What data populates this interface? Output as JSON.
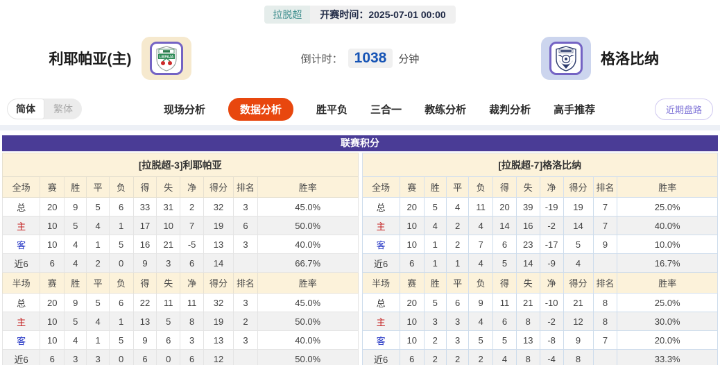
{
  "match": {
    "league_badge": "拉脱超",
    "kickoff_text": "开赛时间：2025-07-01 00:00",
    "home_team": "利耶帕亚(主)",
    "away_team": "格洛比纳",
    "home_logo": "liepaja-crest",
    "away_logo": "grobina-crest",
    "countdown_label": "倒计时：",
    "countdown_value": "1038",
    "countdown_unit": "分钟"
  },
  "nav": {
    "lang_simplified": "简体",
    "lang_traditional": "繁体",
    "tabs": [
      {
        "label": "现场分析",
        "active": false
      },
      {
        "label": "数据分析",
        "active": true
      },
      {
        "label": "胜平负",
        "active": false
      },
      {
        "label": "三合一",
        "active": false
      },
      {
        "label": "教练分析",
        "active": false
      },
      {
        "label": "裁判分析",
        "active": false
      },
      {
        "label": "高手推荐",
        "active": false
      }
    ],
    "recent_button": "近期盘路"
  },
  "league_table": {
    "title": "联赛积分",
    "columns_full": [
      "全场",
      "赛",
      "胜",
      "平",
      "负",
      "得",
      "失",
      "净",
      "得分",
      "排名",
      "胜率"
    ],
    "columns_half": [
      "半场",
      "赛",
      "胜",
      "平",
      "负",
      "得",
      "失",
      "净",
      "得分",
      "排名",
      "胜率"
    ],
    "teams": [
      {
        "header": "[拉脱超-3]利耶帕亚",
        "full": [
          [
            "总",
            "20",
            "9",
            "5",
            "6",
            "33",
            "31",
            "2",
            "32",
            "3",
            "45.0%"
          ],
          [
            "主",
            "10",
            "5",
            "4",
            "1",
            "17",
            "10",
            "7",
            "19",
            "6",
            "50.0%"
          ],
          [
            "客",
            "10",
            "4",
            "1",
            "5",
            "16",
            "21",
            "-5",
            "13",
            "3",
            "40.0%"
          ],
          [
            "近6",
            "6",
            "4",
            "2",
            "0",
            "9",
            "3",
            "6",
            "14",
            "",
            "66.7%"
          ]
        ],
        "half": [
          [
            "总",
            "20",
            "9",
            "5",
            "6",
            "22",
            "11",
            "11",
            "32",
            "3",
            "45.0%"
          ],
          [
            "主",
            "10",
            "5",
            "4",
            "1",
            "13",
            "5",
            "8",
            "19",
            "2",
            "50.0%"
          ],
          [
            "客",
            "10",
            "4",
            "1",
            "5",
            "9",
            "6",
            "3",
            "13",
            "3",
            "40.0%"
          ],
          [
            "近6",
            "6",
            "3",
            "3",
            "0",
            "6",
            "0",
            "6",
            "12",
            "",
            "50.0%"
          ]
        ]
      },
      {
        "header": "[拉脱超-7]格洛比纳",
        "full": [
          [
            "总",
            "20",
            "5",
            "4",
            "11",
            "20",
            "39",
            "-19",
            "19",
            "7",
            "25.0%"
          ],
          [
            "主",
            "10",
            "4",
            "2",
            "4",
            "14",
            "16",
            "-2",
            "14",
            "7",
            "40.0%"
          ],
          [
            "客",
            "10",
            "1",
            "2",
            "7",
            "6",
            "23",
            "-17",
            "5",
            "9",
            "10.0%"
          ],
          [
            "近6",
            "6",
            "1",
            "1",
            "4",
            "5",
            "14",
            "-9",
            "4",
            "",
            "16.7%"
          ]
        ],
        "half": [
          [
            "总",
            "20",
            "5",
            "6",
            "9",
            "11",
            "21",
            "-10",
            "21",
            "8",
            "25.0%"
          ],
          [
            "主",
            "10",
            "3",
            "3",
            "4",
            "6",
            "8",
            "-2",
            "12",
            "8",
            "30.0%"
          ],
          [
            "客",
            "10",
            "2",
            "3",
            "5",
            "5",
            "13",
            "-8",
            "9",
            "7",
            "20.0%"
          ],
          [
            "近6",
            "6",
            "2",
            "2",
            "2",
            "4",
            "8",
            "-4",
            "8",
            "",
            "33.3%"
          ]
        ]
      }
    ]
  },
  "colors": {
    "accent_purple": "#4a3c96",
    "active_tab_red": "#e8470e",
    "header_beige": "#fcf2da",
    "home_label_red": "#c21d1d",
    "away_label_blue": "#1d2ec2",
    "countdown_blue": "#1553b5",
    "badge_teal": "#3b8d8c"
  }
}
